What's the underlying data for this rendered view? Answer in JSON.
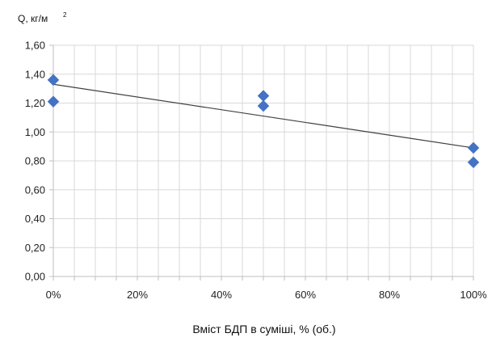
{
  "chart_data": {
    "type": "scatter",
    "title": "",
    "ylabel": "Q, кг/м",
    "ylabel_superscript": "2",
    "xlabel": "Вміст БДП в суміші, % (об.)",
    "xlim": [
      0,
      100
    ],
    "ylim": [
      0,
      1.6
    ],
    "grid": true,
    "legend": "none",
    "x_ticks": [
      {
        "value": 0,
        "label": "0%"
      },
      {
        "value": 20,
        "label": "20%"
      },
      {
        "value": 40,
        "label": "40%"
      },
      {
        "value": 60,
        "label": "60%"
      },
      {
        "value": 80,
        "label": "80%"
      },
      {
        "value": 100,
        "label": "100%"
      }
    ],
    "y_ticks": [
      {
        "value": 0,
        "label": "0,00"
      },
      {
        "value": 0.2,
        "label": "0,20"
      },
      {
        "value": 0.4,
        "label": "0,40"
      },
      {
        "value": 0.6,
        "label": "0,60"
      },
      {
        "value": 0.8,
        "label": "0,80"
      },
      {
        "value": 1.0,
        "label": "1,00"
      },
      {
        "value": 1.2,
        "label": "1,20"
      },
      {
        "value": 1.4,
        "label": "1,40"
      },
      {
        "value": 1.6,
        "label": "1,60"
      }
    ],
    "series": [
      {
        "marker": "diamond",
        "color": "#4472C4",
        "points": [
          {
            "x": 0,
            "y": 1.36
          },
          {
            "x": 0,
            "y": 1.21
          },
          {
            "x": 50,
            "y": 1.25
          },
          {
            "x": 50,
            "y": 1.18
          },
          {
            "x": 100,
            "y": 0.89
          },
          {
            "x": 100,
            "y": 0.79
          }
        ]
      }
    ],
    "trendline": {
      "type": "linear",
      "color": "#404040",
      "start": {
        "x": 0,
        "y": 1.33
      },
      "end": {
        "x": 100,
        "y": 0.89
      }
    },
    "colors": {
      "grid": "#d9d9d9",
      "axis": "#bfbfbf",
      "text": "#222222"
    }
  }
}
